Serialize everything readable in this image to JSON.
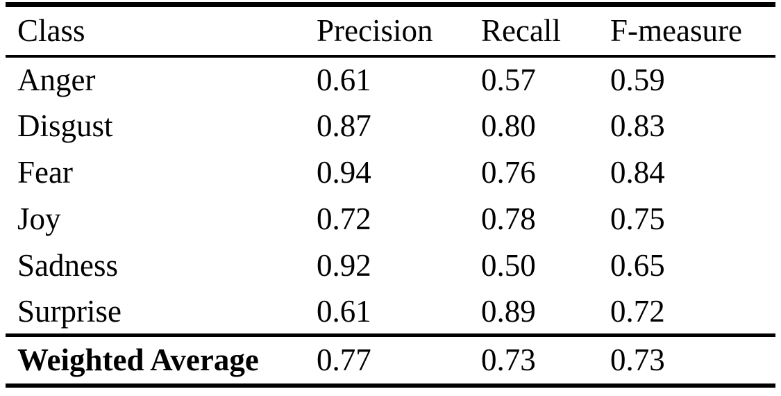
{
  "table": {
    "headers": [
      "Class",
      "Precision",
      "Recall",
      "F-measure"
    ],
    "rows": [
      {
        "cells": [
          "Anger",
          "0.61",
          "0.57",
          "0.59"
        ]
      },
      {
        "cells": [
          "Disgust",
          "0.87",
          "0.80",
          "0.83"
        ]
      },
      {
        "cells": [
          "Fear",
          "0.94",
          "0.76",
          "0.84"
        ]
      },
      {
        "cells": [
          "Joy",
          "0.72",
          "0.78",
          "0.75"
        ]
      },
      {
        "cells": [
          "Sadness",
          "0.92",
          "0.50",
          "0.65"
        ]
      },
      {
        "cells": [
          "Surprise",
          "0.61",
          "0.89",
          "0.72"
        ]
      }
    ],
    "footer": {
      "cells": [
        "Weighted Average",
        "0.77",
        "0.73",
        "0.73"
      ]
    }
  },
  "colors": {
    "text": "#000000",
    "background": "#ffffff",
    "rule": "#000000"
  }
}
